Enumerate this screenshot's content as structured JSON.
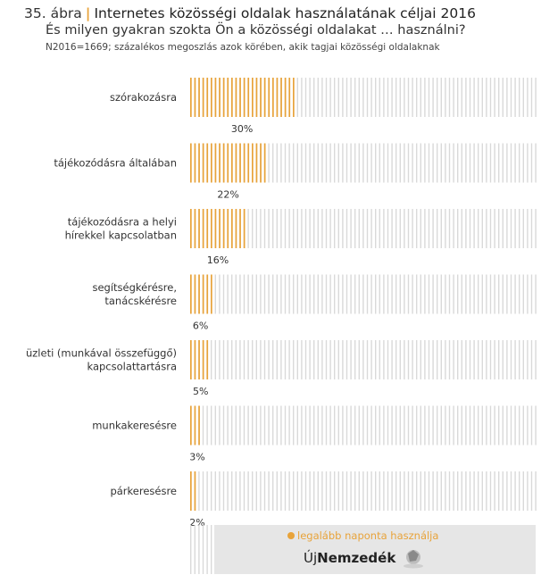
{
  "header": {
    "figure_number": "35. ábra",
    "separator": "|",
    "title": "Internetes közösségi oldalak használatának céljai 2016",
    "subtitle": "És milyen gyakran szokta Ön a közösségi oldalakat … használni?",
    "note": "N2016=1669; százalékos megoszlás azok körében, akik tagjai közösségi oldalaknak"
  },
  "legend": {
    "label": "legalább naponta használja"
  },
  "logo": {
    "text_light": "Új",
    "text_bold": "Nemzedék"
  },
  "colors": {
    "bar": "#e8a33a",
    "background_stripe": "#d9d9d9",
    "legend_panel": "#e6e6e6"
  },
  "chart_data": {
    "type": "bar",
    "orientation": "horizontal",
    "categories": [
      [
        "szórakozásra"
      ],
      [
        "tájékozódásra általában"
      ],
      [
        "tájékozódásra a helyi",
        "hírekkel kapcsolatban"
      ],
      [
        "segítségkérésre,",
        "tanácskérésre"
      ],
      [
        "üzleti (munkával összefüggő)",
        "kapcsolattartásra"
      ],
      [
        "munkakeresésre"
      ],
      [
        "párkeresésre"
      ]
    ],
    "series": [
      {
        "name": "legalább naponta használja",
        "values": [
          30,
          22,
          16,
          6,
          5,
          3,
          2
        ],
        "labels": [
          "30%",
          "22%",
          "16%",
          "6%",
          "5%",
          "3%",
          "2%"
        ]
      }
    ],
    "xlim": [
      0,
      100
    ],
    "grid": false,
    "legend_position": "bottom"
  }
}
